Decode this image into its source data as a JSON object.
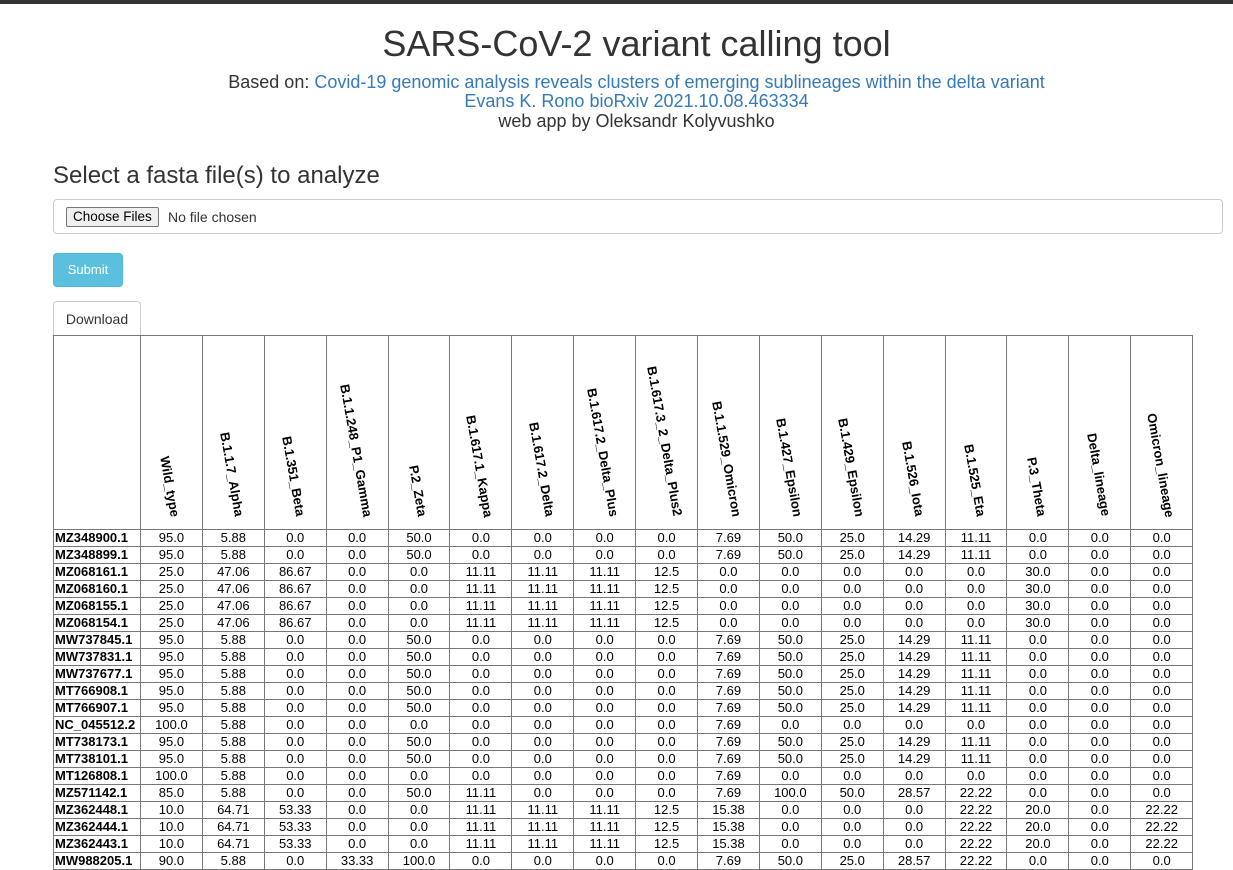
{
  "header": {
    "title": "SARS-CoV-2 variant calling tool",
    "based_on_label": "Based on:",
    "paper_link": "Covid-19 genomic analysis reveals clusters of emerging sublineages within the delta variant",
    "citation_link": "Evans K. Rono bioRxiv 2021.10.08.463334",
    "author_line": "web app by Oleksandr Kolyvushko"
  },
  "upload": {
    "label": "Select a fasta file(s) to analyze",
    "choose_button": "Choose Files",
    "file_status": "No file chosen",
    "submit_label": "Submit"
  },
  "download_label": "Download",
  "table": {
    "columns": [
      "Wild_type",
      "B.1.1.7_Alpha",
      "B.1.351_Beta",
      "B.1.1.248_P1_Gamma",
      "P.2_Zeta",
      "B.1.617.1_Kappa",
      "B.1.617.2_Delta",
      "B.1.617.2_Delta_Plus",
      "B.1.617.3_2_Delta_Plus2",
      "B.1.1.529_Omicron",
      "B.1.427_Epsilon",
      "B.1.429_Epsilon",
      "B.1.526_Iota",
      "B.1.525_Eta",
      "P.3_Theta",
      "Delta_lineage",
      "Omicron_lineage"
    ],
    "rows": [
      {
        "id": "MZ348900.1",
        "values": [
          "95.0",
          "5.88",
          "0.0",
          "0.0",
          "50.0",
          "0.0",
          "0.0",
          "0.0",
          "0.0",
          "7.69",
          "50.0",
          "25.0",
          "14.29",
          "11.11",
          "0.0",
          "0.0",
          "0.0"
        ]
      },
      {
        "id": "MZ348899.1",
        "values": [
          "95.0",
          "5.88",
          "0.0",
          "0.0",
          "50.0",
          "0.0",
          "0.0",
          "0.0",
          "0.0",
          "7.69",
          "50.0",
          "25.0",
          "14.29",
          "11.11",
          "0.0",
          "0.0",
          "0.0"
        ]
      },
      {
        "id": "MZ068161.1",
        "values": [
          "25.0",
          "47.06",
          "86.67",
          "0.0",
          "0.0",
          "11.11",
          "11.11",
          "11.11",
          "12.5",
          "0.0",
          "0.0",
          "0.0",
          "0.0",
          "0.0",
          "30.0",
          "0.0",
          "0.0"
        ]
      },
      {
        "id": "MZ068160.1",
        "values": [
          "25.0",
          "47.06",
          "86.67",
          "0.0",
          "0.0",
          "11.11",
          "11.11",
          "11.11",
          "12.5",
          "0.0",
          "0.0",
          "0.0",
          "0.0",
          "0.0",
          "30.0",
          "0.0",
          "0.0"
        ]
      },
      {
        "id": "MZ068155.1",
        "values": [
          "25.0",
          "47.06",
          "86.67",
          "0.0",
          "0.0",
          "11.11",
          "11.11",
          "11.11",
          "12.5",
          "0.0",
          "0.0",
          "0.0",
          "0.0",
          "0.0",
          "30.0",
          "0.0",
          "0.0"
        ]
      },
      {
        "id": "MZ068154.1",
        "values": [
          "25.0",
          "47.06",
          "86.67",
          "0.0",
          "0.0",
          "11.11",
          "11.11",
          "11.11",
          "12.5",
          "0.0",
          "0.0",
          "0.0",
          "0.0",
          "0.0",
          "30.0",
          "0.0",
          "0.0"
        ]
      },
      {
        "id": "MW737845.1",
        "values": [
          "95.0",
          "5.88",
          "0.0",
          "0.0",
          "50.0",
          "0.0",
          "0.0",
          "0.0",
          "0.0",
          "7.69",
          "50.0",
          "25.0",
          "14.29",
          "11.11",
          "0.0",
          "0.0",
          "0.0"
        ]
      },
      {
        "id": "MW737831.1",
        "values": [
          "95.0",
          "5.88",
          "0.0",
          "0.0",
          "50.0",
          "0.0",
          "0.0",
          "0.0",
          "0.0",
          "7.69",
          "50.0",
          "25.0",
          "14.29",
          "11.11",
          "0.0",
          "0.0",
          "0.0"
        ]
      },
      {
        "id": "MW737677.1",
        "values": [
          "95.0",
          "5.88",
          "0.0",
          "0.0",
          "50.0",
          "0.0",
          "0.0",
          "0.0",
          "0.0",
          "7.69",
          "50.0",
          "25.0",
          "14.29",
          "11.11",
          "0.0",
          "0.0",
          "0.0"
        ]
      },
      {
        "id": "MT766908.1",
        "values": [
          "95.0",
          "5.88",
          "0.0",
          "0.0",
          "50.0",
          "0.0",
          "0.0",
          "0.0",
          "0.0",
          "7.69",
          "50.0",
          "25.0",
          "14.29",
          "11.11",
          "0.0",
          "0.0",
          "0.0"
        ]
      },
      {
        "id": "MT766907.1",
        "values": [
          "95.0",
          "5.88",
          "0.0",
          "0.0",
          "50.0",
          "0.0",
          "0.0",
          "0.0",
          "0.0",
          "7.69",
          "50.0",
          "25.0",
          "14.29",
          "11.11",
          "0.0",
          "0.0",
          "0.0"
        ]
      },
      {
        "id": "NC_045512.2",
        "values": [
          "100.0",
          "5.88",
          "0.0",
          "0.0",
          "0.0",
          "0.0",
          "0.0",
          "0.0",
          "0.0",
          "7.69",
          "0.0",
          "0.0",
          "0.0",
          "0.0",
          "0.0",
          "0.0",
          "0.0"
        ]
      },
      {
        "id": "MT738173.1",
        "values": [
          "95.0",
          "5.88",
          "0.0",
          "0.0",
          "50.0",
          "0.0",
          "0.0",
          "0.0",
          "0.0",
          "7.69",
          "50.0",
          "25.0",
          "14.29",
          "11.11",
          "0.0",
          "0.0",
          "0.0"
        ]
      },
      {
        "id": "MT738101.1",
        "values": [
          "95.0",
          "5.88",
          "0.0",
          "0.0",
          "50.0",
          "0.0",
          "0.0",
          "0.0",
          "0.0",
          "7.69",
          "50.0",
          "25.0",
          "14.29",
          "11.11",
          "0.0",
          "0.0",
          "0.0"
        ]
      },
      {
        "id": "MT126808.1",
        "values": [
          "100.0",
          "5.88",
          "0.0",
          "0.0",
          "0.0",
          "0.0",
          "0.0",
          "0.0",
          "0.0",
          "7.69",
          "0.0",
          "0.0",
          "0.0",
          "0.0",
          "0.0",
          "0.0",
          "0.0"
        ]
      },
      {
        "id": "MZ571142.1",
        "values": [
          "85.0",
          "5.88",
          "0.0",
          "0.0",
          "50.0",
          "11.11",
          "0.0",
          "0.0",
          "0.0",
          "7.69",
          "100.0",
          "50.0",
          "28.57",
          "22.22",
          "0.0",
          "0.0",
          "0.0"
        ]
      },
      {
        "id": "MZ362448.1",
        "values": [
          "10.0",
          "64.71",
          "53.33",
          "0.0",
          "0.0",
          "11.11",
          "11.11",
          "11.11",
          "12.5",
          "15.38",
          "0.0",
          "0.0",
          "0.0",
          "22.22",
          "20.0",
          "0.0",
          "22.22"
        ]
      },
      {
        "id": "MZ362444.1",
        "values": [
          "10.0",
          "64.71",
          "53.33",
          "0.0",
          "0.0",
          "11.11",
          "11.11",
          "11.11",
          "12.5",
          "15.38",
          "0.0",
          "0.0",
          "0.0",
          "22.22",
          "20.0",
          "0.0",
          "22.22"
        ]
      },
      {
        "id": "MZ362443.1",
        "values": [
          "10.0",
          "64.71",
          "53.33",
          "0.0",
          "0.0",
          "11.11",
          "11.11",
          "11.11",
          "12.5",
          "15.38",
          "0.0",
          "0.0",
          "0.0",
          "22.22",
          "20.0",
          "0.0",
          "22.22"
        ]
      },
      {
        "id": "MW988205.1",
        "values": [
          "90.0",
          "5.88",
          "0.0",
          "33.33",
          "100.0",
          "0.0",
          "0.0",
          "0.0",
          "0.0",
          "7.69",
          "50.0",
          "25.0",
          "28.57",
          "22.22",
          "0.0",
          "0.0",
          "0.0"
        ]
      }
    ]
  }
}
